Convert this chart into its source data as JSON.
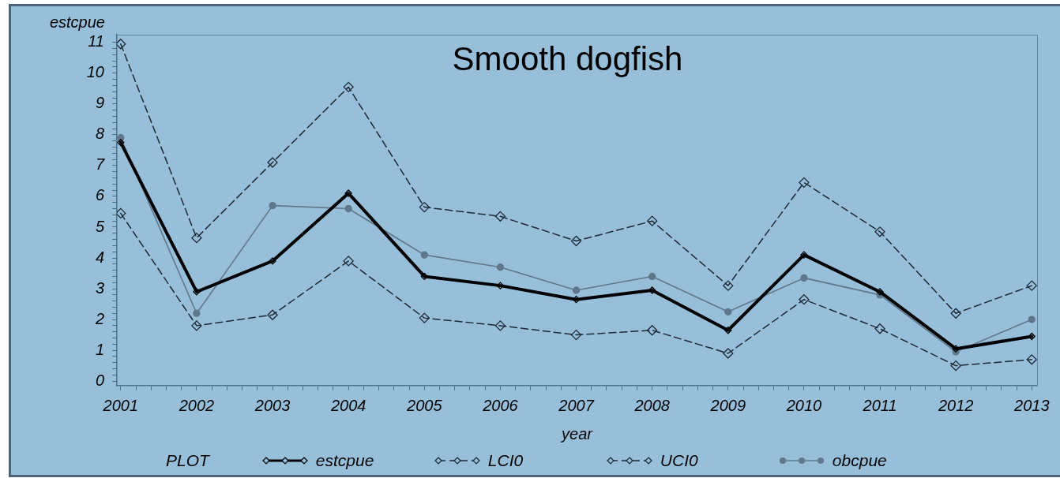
{
  "chart_data": {
    "type": "line",
    "title": "Smooth dogfish",
    "xlabel": "year",
    "ylabel": "estcpue",
    "legend_title": "PLOT",
    "legend": "bottom",
    "x": [
      2001,
      2002,
      2003,
      2004,
      2005,
      2006,
      2007,
      2008,
      2009,
      2010,
      2011,
      2012,
      2013
    ],
    "series": [
      {
        "name": "estcpue",
        "color": "#000000",
        "marker": "diamond",
        "line_style": "solid",
        "values": [
          7.75,
          2.9,
          3.9,
          6.1,
          3.4,
          3.1,
          2.65,
          2.95,
          1.65,
          4.1,
          2.9,
          1.05,
          1.45
        ]
      },
      {
        "name": "LCI0",
        "color": "#1b2836",
        "marker": "diamond",
        "line_style": "dashed",
        "values": [
          5.45,
          1.8,
          2.15,
          3.9,
          2.05,
          1.8,
          1.5,
          1.65,
          0.9,
          2.65,
          1.7,
          0.5,
          0.7
        ]
      },
      {
        "name": "UCI0",
        "color": "#1b2836",
        "marker": "diamond",
        "line_style": "dashed",
        "values": [
          10.95,
          4.65,
          7.1,
          9.55,
          5.65,
          5.35,
          4.55,
          5.2,
          3.1,
          6.45,
          4.85,
          2.2,
          3.1
        ]
      },
      {
        "name": "obcpue",
        "color": "#5f778b",
        "marker": "circle",
        "line_style": "solid",
        "values": [
          7.9,
          2.2,
          5.7,
          5.6,
          4.1,
          3.7,
          2.95,
          3.4,
          2.25,
          3.35,
          2.8,
          0.95,
          2.0
        ]
      }
    ],
    "xlim": [
      2000.95,
      2013.07
    ],
    "ylim": [
      -0.15,
      11.25
    ],
    "xticks": [
      2001,
      {
        "value": 2001.2,
        "label": null
      },
      {
        "value": 2001.4,
        "label": null
      },
      {
        "value": 2001.6,
        "label": null
      },
      {
        "value": 2001.8,
        "label": null
      },
      2002,
      {
        "value": 2002.2,
        "label": null
      },
      {
        "value": 2002.4,
        "label": null
      },
      {
        "value": 2002.6,
        "label": null
      },
      {
        "value": 2002.8,
        "label": null
      },
      2003,
      {
        "value": 2003.2,
        "label": null
      },
      {
        "value": 2003.4,
        "label": null
      },
      {
        "value": 2003.6,
        "label": null
      },
      {
        "value": 2003.8,
        "label": null
      },
      2004,
      {
        "value": 2004.2,
        "label": null
      },
      {
        "value": 2004.4,
        "label": null
      },
      {
        "value": 2004.6,
        "label": null
      },
      {
        "value": 2004.8,
        "label": null
      },
      2005,
      {
        "value": 2005.2,
        "label": null
      },
      {
        "value": 2005.4,
        "label": null
      },
      {
        "value": 2005.6,
        "label": null
      },
      {
        "value": 2005.8,
        "label": null
      },
      2006,
      {
        "value": 2006.2,
        "label": null
      },
      {
        "value": 2006.4,
        "label": null
      },
      {
        "value": 2006.6,
        "label": null
      },
      {
        "value": 2006.8,
        "label": null
      },
      2007,
      {
        "value": 2007.2,
        "label": null
      },
      {
        "value": 2007.4,
        "label": null
      },
      {
        "value": 2007.6,
        "label": null
      },
      {
        "value": 2007.8,
        "label": null
      },
      2008,
      {
        "value": 2008.2,
        "label": null
      },
      {
        "value": 2008.4,
        "label": null
      },
      {
        "value": 2008.6,
        "label": null
      },
      {
        "value": 2008.8,
        "label": null
      },
      2009,
      {
        "value": 2009.2,
        "label": null
      },
      {
        "value": 2009.4,
        "label": null
      },
      {
        "value": 2009.6,
        "label": null
      },
      {
        "value": 2009.8,
        "label": null
      },
      2010,
      {
        "value": 2010.2,
        "label": null
      },
      {
        "value": 2010.4,
        "label": null
      },
      {
        "value": 2010.6,
        "label": null
      },
      {
        "value": 2010.8,
        "label": null
      },
      2011,
      {
        "value": 2011.2,
        "label": null
      },
      {
        "value": 2011.4,
        "label": null
      },
      {
        "value": 2011.6,
        "label": null
      },
      {
        "value": 2011.8,
        "label": null
      },
      2012,
      {
        "value": 2012.2,
        "label": null
      },
      {
        "value": 2012.4,
        "label": null
      },
      {
        "value": 2012.6,
        "label": null
      },
      {
        "value": 2012.8,
        "label": null
      },
      2013
    ],
    "yticks": [
      0,
      {
        "value": 0.2,
        "label": null
      },
      {
        "value": 0.4,
        "label": null
      },
      {
        "value": 0.6,
        "label": null
      },
      {
        "value": 0.8,
        "label": null
      },
      1,
      {
        "value": 1.2,
        "label": null
      },
      {
        "value": 1.4,
        "label": null
      },
      {
        "value": 1.6,
        "label": null
      },
      {
        "value": 1.8,
        "label": null
      },
      2,
      {
        "value": 2.2,
        "label": null
      },
      {
        "value": 2.4,
        "label": null
      },
      {
        "value": 2.6,
        "label": null
      },
      {
        "value": 2.8,
        "label": null
      },
      3,
      {
        "value": 3.2,
        "label": null
      },
      {
        "value": 3.4,
        "label": null
      },
      {
        "value": 3.6,
        "label": null
      },
      {
        "value": 3.8,
        "label": null
      },
      4,
      {
        "value": 4.2,
        "label": null
      },
      {
        "value": 4.4,
        "label": null
      },
      {
        "value": 4.6,
        "label": null
      },
      {
        "value": 4.8,
        "label": null
      },
      5,
      {
        "value": 5.2,
        "label": null
      },
      {
        "value": 5.4,
        "label": null
      },
      {
        "value": 5.6,
        "label": null
      },
      {
        "value": 5.8,
        "label": null
      },
      6,
      {
        "value": 6.2,
        "label": null
      },
      {
        "value": 6.4,
        "label": null
      },
      {
        "value": 6.6,
        "label": null
      },
      {
        "value": 6.8,
        "label": null
      },
      7,
      {
        "value": 7.2,
        "label": null
      },
      {
        "value": 7.4,
        "label": null
      },
      {
        "value": 7.6,
        "label": null
      },
      {
        "value": 7.8,
        "label": null
      },
      8,
      {
        "value": 8.2,
        "label": null
      },
      {
        "value": 8.4,
        "label": null
      },
      {
        "value": 8.6,
        "label": null
      },
      {
        "value": 8.8,
        "label": null
      },
      9,
      {
        "value": 9.2,
        "label": null
      },
      {
        "value": 9.4,
        "label": null
      },
      {
        "value": 9.6,
        "label": null
      },
      {
        "value": 9.8,
        "label": null
      },
      10,
      {
        "value": 10.2,
        "label": null
      },
      {
        "value": 10.4,
        "label": null
      },
      {
        "value": 10.6,
        "label": null
      },
      {
        "value": 10.8,
        "label": null
      },
      11
    ]
  }
}
